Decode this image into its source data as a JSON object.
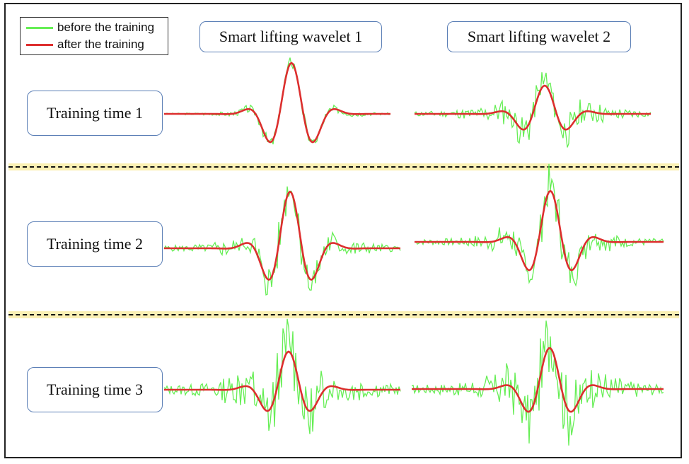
{
  "legend": {
    "before_label": "before the training",
    "after_label": "after the training",
    "before_color": "#66ee55",
    "after_color": "#dd2e2e"
  },
  "columns": [
    {
      "label": "Smart lifting wavelet 1"
    },
    {
      "label": "Smart lifting wavelet 2"
    }
  ],
  "rows": [
    {
      "label": "Training time 1"
    },
    {
      "label": "Training time 2"
    },
    {
      "label": "Training time 3"
    }
  ],
  "colors": {
    "divider_fill": "#fbf0b4",
    "box_border": "#5b7fb6",
    "frame": "#222222"
  }
}
